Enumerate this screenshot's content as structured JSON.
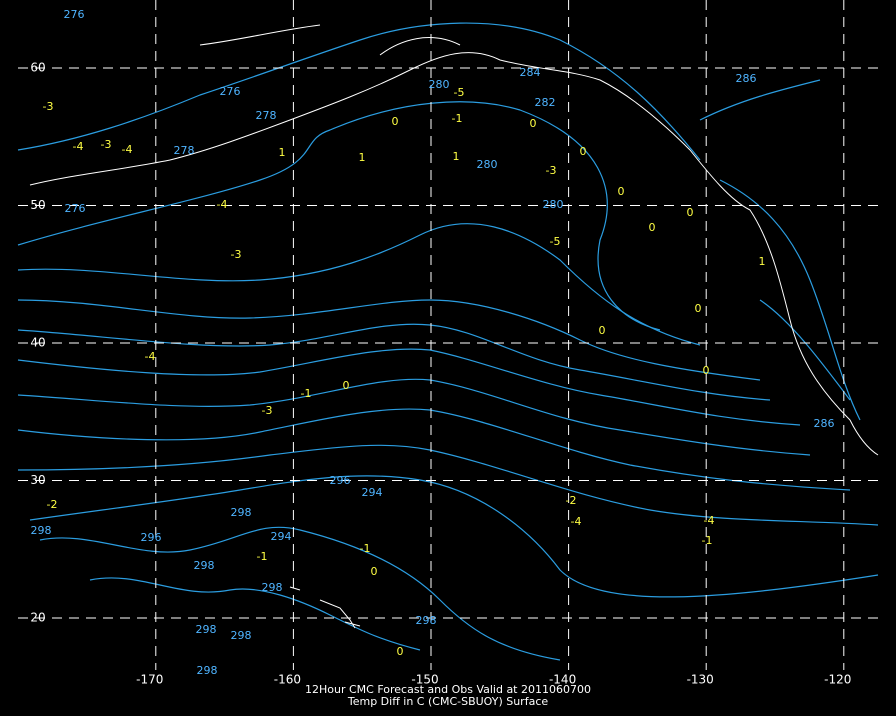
{
  "title": "12Hour CMC Forecast and Obs Valid at 2011060700",
  "subtitle": "Temp Diff in C (CMC-SBUOY) Surface",
  "lat_ticks": [
    60,
    50,
    40,
    30,
    20
  ],
  "lon_ticks": [
    -170,
    -160,
    -150,
    -140,
    -130,
    -120
  ],
  "temp_diff_labels": [
    "-3",
    "-4",
    "-3",
    "-4",
    "-4",
    "-3",
    "-4",
    "-3",
    "-1",
    "0",
    "-2",
    "-1",
    "-1",
    "0",
    "0",
    "1",
    "1",
    "1",
    "0",
    "-1",
    "0",
    "0",
    "-3",
    "0",
    "-5",
    "0",
    "0",
    "1",
    "0",
    "0",
    "0",
    "-2",
    "-4",
    "-4",
    "-1",
    "-5"
  ],
  "isotherm_labels": [
    "276",
    "276",
    "278",
    "278",
    "276",
    "280",
    "282",
    "280",
    "280",
    "284",
    "286",
    "296",
    "294",
    "298",
    "296",
    "298",
    "298",
    "294",
    "298",
    "298",
    "298",
    "298",
    "298",
    "286"
  ]
}
